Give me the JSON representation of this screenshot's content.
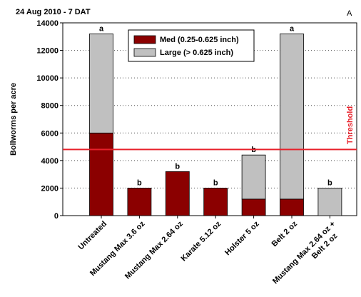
{
  "chart_data": {
    "type": "stacked_bar",
    "title": "24 Aug 2010 - 7 DAT",
    "panel_label": "A",
    "y_label": "Bollworms per acre",
    "categories": [
      "Untreated",
      "Mustang Max 3.6 oz",
      "Mustang Max 2.64 oz",
      "Karate 5.12 oz",
      "Holster 5 oz",
      "Belt 2 oz",
      "Mustang Max 2.64 oz +\nBelt 2 oz"
    ],
    "series": [
      {
        "name": "Med (0.25-0.625 inch)",
        "color": "#8b0000",
        "values": [
          6000,
          2000,
          3200,
          2000,
          1200,
          1200,
          0
        ]
      },
      {
        "name": "Large (> 0.625 inch)",
        "color": "#c0c0c0",
        "values": [
          7200,
          0,
          0,
          0,
          3200,
          12000,
          2000
        ]
      }
    ],
    "annotations": [
      "a",
      "b",
      "b",
      "b",
      "b",
      "a",
      "b"
    ],
    "threshold": {
      "label": "Threshold",
      "value": 4800,
      "color": "#e8202a"
    },
    "ylim": [
      0,
      14000
    ],
    "yticks": [
      0,
      2000,
      4000,
      6000,
      8000,
      10000,
      12000,
      14000
    ],
    "grid": true,
    "legend": "top"
  }
}
